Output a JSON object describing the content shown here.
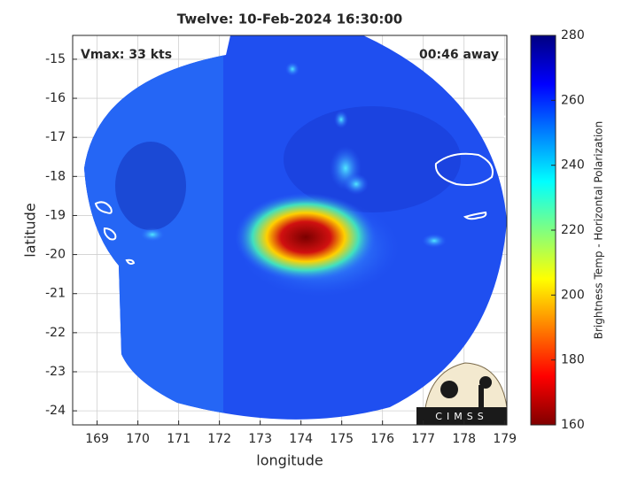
{
  "chart_data": {
    "type": "map",
    "title": "Twelve: 10-Feb-2024 16:30:00",
    "annotations": [
      "Vmax: 33 kts",
      "00:46 away"
    ],
    "xlabel": "longitude",
    "ylabel": "latitude",
    "xlim": [
      168.4,
      179.05
    ],
    "ylim": [
      -24.36,
      -14.39
    ],
    "xticks": [
      169,
      170,
      171,
      172,
      173,
      174,
      175,
      176,
      177,
      178,
      179
    ],
    "yticks": [
      -15,
      -16,
      -17,
      -18,
      -19,
      -20,
      -21,
      -22,
      -23,
      -24
    ],
    "grid": true,
    "colorbar": {
      "label": "Brightness Temp - Horizontal Polarization",
      "lim": [
        160,
        280
      ],
      "ticks": [
        160,
        180,
        200,
        220,
        240,
        260,
        280
      ]
    },
    "logo_text": "CIMSS"
  }
}
